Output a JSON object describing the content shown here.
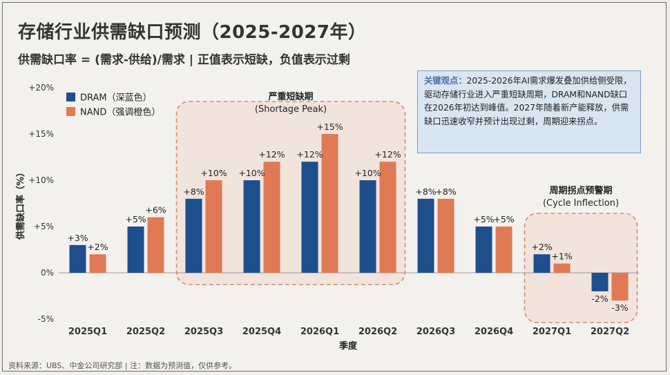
{
  "title": "存储行业供需缺口预测（2025-2027年）",
  "subtitle": "供需缺口率 = (需求-供给)/需求 | 正值表示短缺，负值表示过剩",
  "footnote": "资料来源：UBS、中金公司研究部 | 注：数据为预测值，仅供参考。",
  "note": {
    "lead": "关键观点：",
    "body": "2025-2026年AI需求爆发叠加供给侧受限，驱动存储行业进入严重短缺周期，DRAM和NAND缺口在2026年初达到峰值。2027年随着新产能释放，供需缺口迅速收窄并预计出现过剩，周期迎来拐点。"
  },
  "colors": {
    "dram": "#1f4e8c",
    "nand": "#e07a55",
    "region_border": "#d48a6e",
    "region_fill": "#efd9cf",
    "note_bg": "#d9e6f2"
  },
  "chart_data": {
    "type": "bar",
    "title": "存储行业供需缺口预测（2025-2027年）",
    "xlabel": "季度",
    "ylabel": "供需缺口率（%）",
    "ylim": [
      -5,
      20
    ],
    "yticks": [
      -5,
      0,
      5,
      10,
      15,
      20
    ],
    "ytick_labels": [
      "-5%",
      "0%",
      "+5%",
      "+10%",
      "+15%",
      "+20%"
    ],
    "categories": [
      "2025Q1",
      "2025Q2",
      "2025Q3",
      "2025Q4",
      "2026Q1",
      "2026Q2",
      "2026Q3",
      "2026Q4",
      "2027Q1",
      "2027Q2"
    ],
    "series": [
      {
        "name": "DRAM（深蓝色）",
        "key": "dram",
        "values": [
          3,
          5,
          8,
          10,
          12,
          10,
          8,
          5,
          2,
          -2
        ],
        "labels": [
          "+3%",
          "+5%",
          "+8%",
          "+10%",
          "+12%",
          "+10%",
          "+8%",
          "+5%",
          "+2%",
          "-2%"
        ]
      },
      {
        "name": "NAND（强调橙色）",
        "key": "nand",
        "values": [
          2,
          6,
          10,
          12,
          15,
          12,
          8,
          5,
          1,
          -3
        ],
        "labels": [
          "+2%",
          "+6%",
          "+10%",
          "+12%",
          "+15%",
          "+12%",
          "+8%",
          "+5%",
          "+1%",
          "-3%"
        ]
      }
    ],
    "legend": "top-left",
    "annotations": [
      {
        "label_line1": "严重短缺期",
        "label_line2": "(Shortage Peak)",
        "from": "2025Q3",
        "to": "2026Q2"
      },
      {
        "label_line1": "周期拐点预警期",
        "label_line2": "(Cycle Inflection)",
        "from": "2027Q1",
        "to": "2027Q2"
      }
    ]
  }
}
